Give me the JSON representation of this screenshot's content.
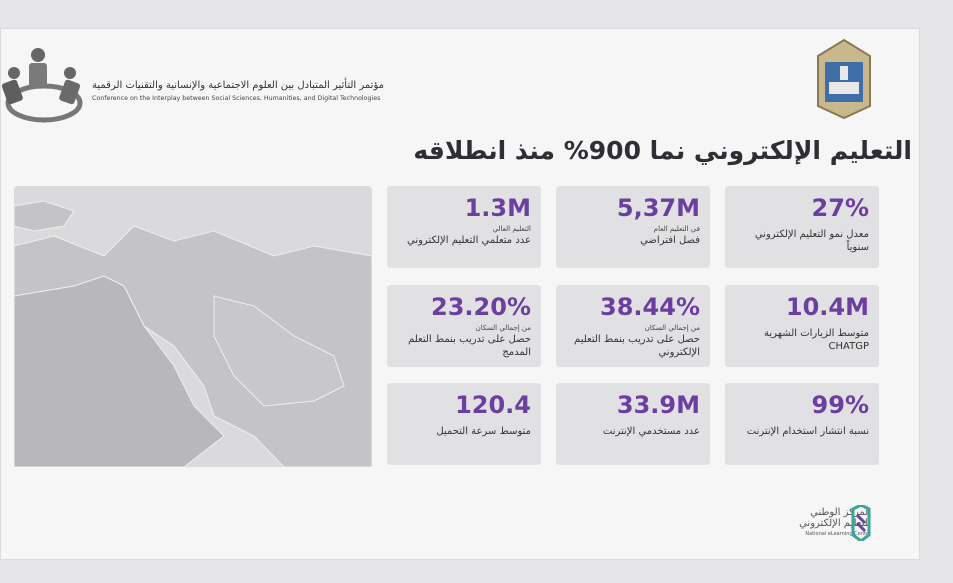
{
  "header": {
    "conference_ar": "مؤتمر التأثير المتبادل بين العلوم الاجتماعية والإنسانية والتقنيات الرقمية",
    "conference_en": "Conference on the Interplay between Social Sciences, Humanities, and Digital Technologies"
  },
  "title": "التعليم الإلكتروني نما 900% منذ انطلاقه",
  "stats": [
    {
      "value": "27%",
      "label": "معدل نمو التعليم الإلكتروني سنوياً"
    },
    {
      "value": "5,37M",
      "sublabel": "في التعليم العام",
      "label": "فصل افتراضي"
    },
    {
      "value": "1.3M",
      "sublabel": "التعليم العالي",
      "label": "عدد متعلمي التعليم الإلكتروني"
    },
    {
      "value": "10.4M",
      "label": "متوسط الزيارات الشهرية CHATGP"
    },
    {
      "value": "38.44%",
      "sublabel": "من إجمالي السكان",
      "label": "حصل على تدريب  بنمط التعليم الإلكتروني"
    },
    {
      "value": "23.20%",
      "sublabel": "من إجمالي السكان",
      "label": "حصل على تدريب بنمط التعلم المدمج"
    },
    {
      "value": "99%",
      "label": "نسبة انتشار استخدام الإنترنت"
    },
    {
      "value": "33.9M",
      "label": "عدد مستخدمي الإنترنت"
    },
    {
      "value": "120.4",
      "label": "متوسط سرعة التحميل"
    }
  ],
  "footer": {
    "name_line1": "المركز الوطني",
    "name_line2": "للتعليم الإلكتروني",
    "name_en": "National eLearning Center"
  }
}
